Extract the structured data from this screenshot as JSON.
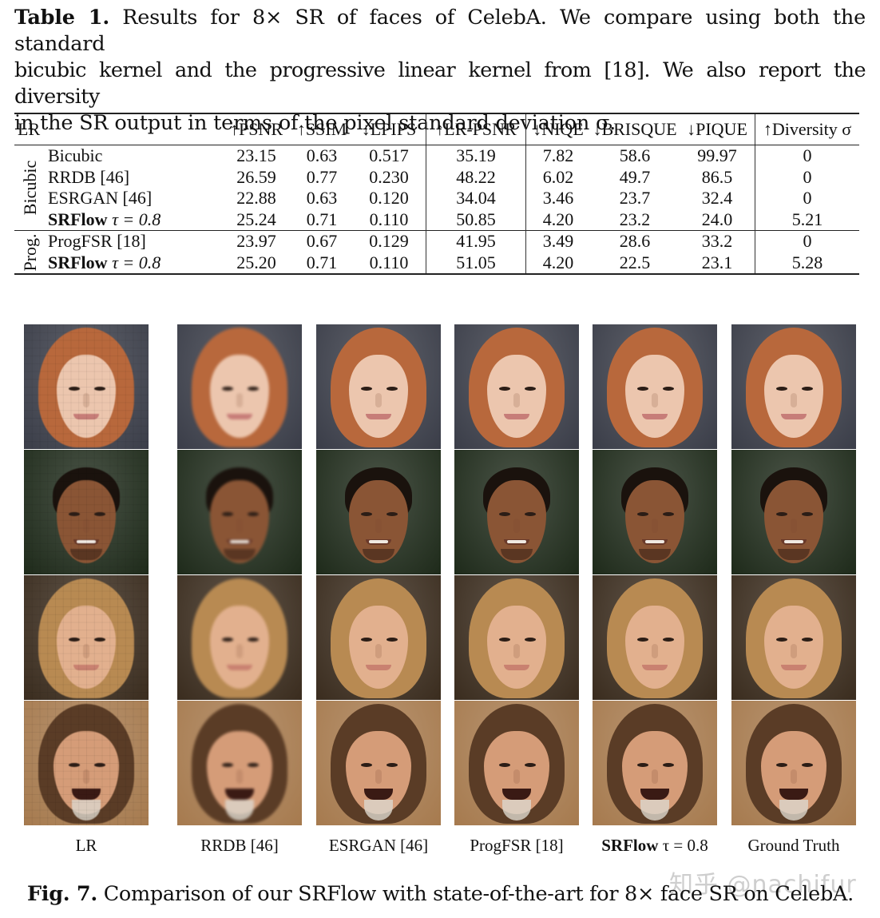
{
  "table_caption": {
    "label": "Table 1.",
    "text_line1": "Results for 8× SR of faces of CelebA. We compare using both the standard",
    "text_line2": "bicubic kernel and the progressive linear kernel from [18]. We also report the diversity",
    "text_line3": "in the SR output in terms of the pixel standard deviation σ."
  },
  "table": {
    "headers": [
      "LR",
      "↑PSNR",
      "↑SSIM",
      "↓LPIPS",
      "↑LR-PSNR",
      "↓NIQE",
      "↓BRISQUE",
      "↓PIQUE",
      "↑Diversity σ"
    ],
    "groups": [
      {
        "label": "Bicubic",
        "rows": [
          {
            "method": "Bicubic",
            "bold": false,
            "suffix": "",
            "psnr": "23.15",
            "ssim": "0.63",
            "lpips": "0.517",
            "lr_psnr": "35.19",
            "niqe": "7.82",
            "brisque": "58.6",
            "pique": "99.97",
            "diversity": "0"
          },
          {
            "method": "RRDB [46]",
            "bold": false,
            "suffix": "",
            "psnr": "26.59",
            "ssim": "0.77",
            "lpips": "0.230",
            "lr_psnr": "48.22",
            "niqe": "6.02",
            "brisque": "49.7",
            "pique": "86.5",
            "diversity": "0"
          },
          {
            "method": "ESRGAN [46]",
            "bold": false,
            "suffix": "",
            "psnr": "22.88",
            "ssim": "0.63",
            "lpips": "0.120",
            "lr_psnr": "34.04",
            "niqe": "3.46",
            "brisque": "23.7",
            "pique": "32.4",
            "diversity": "0"
          },
          {
            "method": "SRFlow",
            "bold": true,
            "suffix": "τ = 0.8",
            "psnr": "25.24",
            "ssim": "0.71",
            "lpips": "0.110",
            "lr_psnr": "50.85",
            "niqe": "4.20",
            "brisque": "23.2",
            "pique": "24.0",
            "diversity": "5.21"
          }
        ]
      },
      {
        "label": "Prog.",
        "rows": [
          {
            "method": "ProgFSR [18]",
            "bold": false,
            "suffix": "",
            "psnr": "23.97",
            "ssim": "0.67",
            "lpips": "0.129",
            "lr_psnr": "41.95",
            "niqe": "3.49",
            "brisque": "28.6",
            "pique": "33.2",
            "diversity": "0"
          },
          {
            "method": "SRFlow",
            "bold": true,
            "suffix": "τ = 0.8",
            "psnr": "25.20",
            "ssim": "0.71",
            "lpips": "0.110",
            "lr_psnr": "51.05",
            "niqe": "4.20",
            "brisque": "22.5",
            "pique": "23.1",
            "diversity": "5.28"
          }
        ]
      }
    ]
  },
  "figure": {
    "columns": [
      {
        "label": "LR",
        "bold_part": "",
        "rest": "LR"
      },
      {
        "label": "RRDB [46]",
        "bold_part": "",
        "rest": "RRDB [46]"
      },
      {
        "label": "ESRGAN [46]",
        "bold_part": "",
        "rest": "ESRGAN [46]"
      },
      {
        "label": "ProgFSR [18]",
        "bold_part": "",
        "rest": "ProgFSR [18]"
      },
      {
        "label": "SRFlow τ = 0.8",
        "bold_part": "SRFlow",
        "rest": " τ = 0.8"
      },
      {
        "label": "Ground Truth",
        "bold_part": "",
        "rest": "Ground Truth"
      }
    ],
    "rows": [
      {
        "subject": "red-haired woman",
        "bg": "#3a3d48",
        "hair": "#b8683c",
        "skin": "#ecc6ae",
        "mouth": "#c77d78"
      },
      {
        "subject": "smiling man with goatee",
        "bg": "#1e2a1a",
        "hair": "#1a120d",
        "skin": "#8a5535",
        "mouth": "#6a3a2a"
      },
      {
        "subject": "blonde woman",
        "bg": "#3a2c1e",
        "hair": "#b88a52",
        "skin": "#e2b08e",
        "mouth": "#c98170"
      },
      {
        "subject": "laughing bearded man",
        "bg": "#a67a4e",
        "hair": "#5a3c26",
        "skin": "#d59c78",
        "mouth": "#3a1a14"
      }
    ],
    "caption_label": "Fig. 7.",
    "caption_text": "Comparison of our SRFlow with state-of-the-art for 8× face SR on CelebA."
  },
  "watermark": "知乎 @nachifur"
}
